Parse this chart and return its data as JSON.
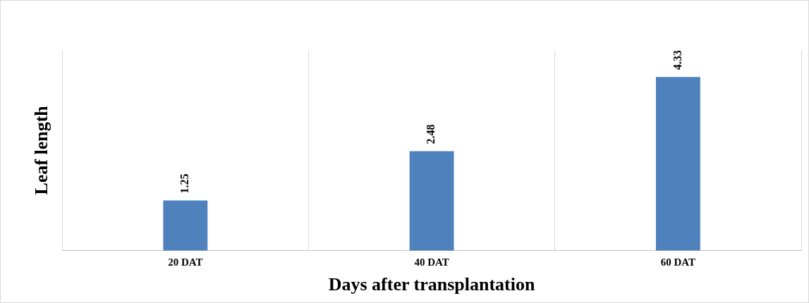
{
  "chart_data": {
    "type": "bar",
    "xlabel": "Days after transplantation",
    "ylabel": "Leaf length",
    "categories": [
      "20 DAT",
      "40 DAT",
      "60 DAT"
    ],
    "values": [
      1.25,
      2.48,
      4.33
    ],
    "color": "#4f81bd",
    "ylim": [
      0,
      5
    ],
    "grid": "x",
    "legend": false,
    "data_labels": true,
    "tick_labels": "x"
  }
}
